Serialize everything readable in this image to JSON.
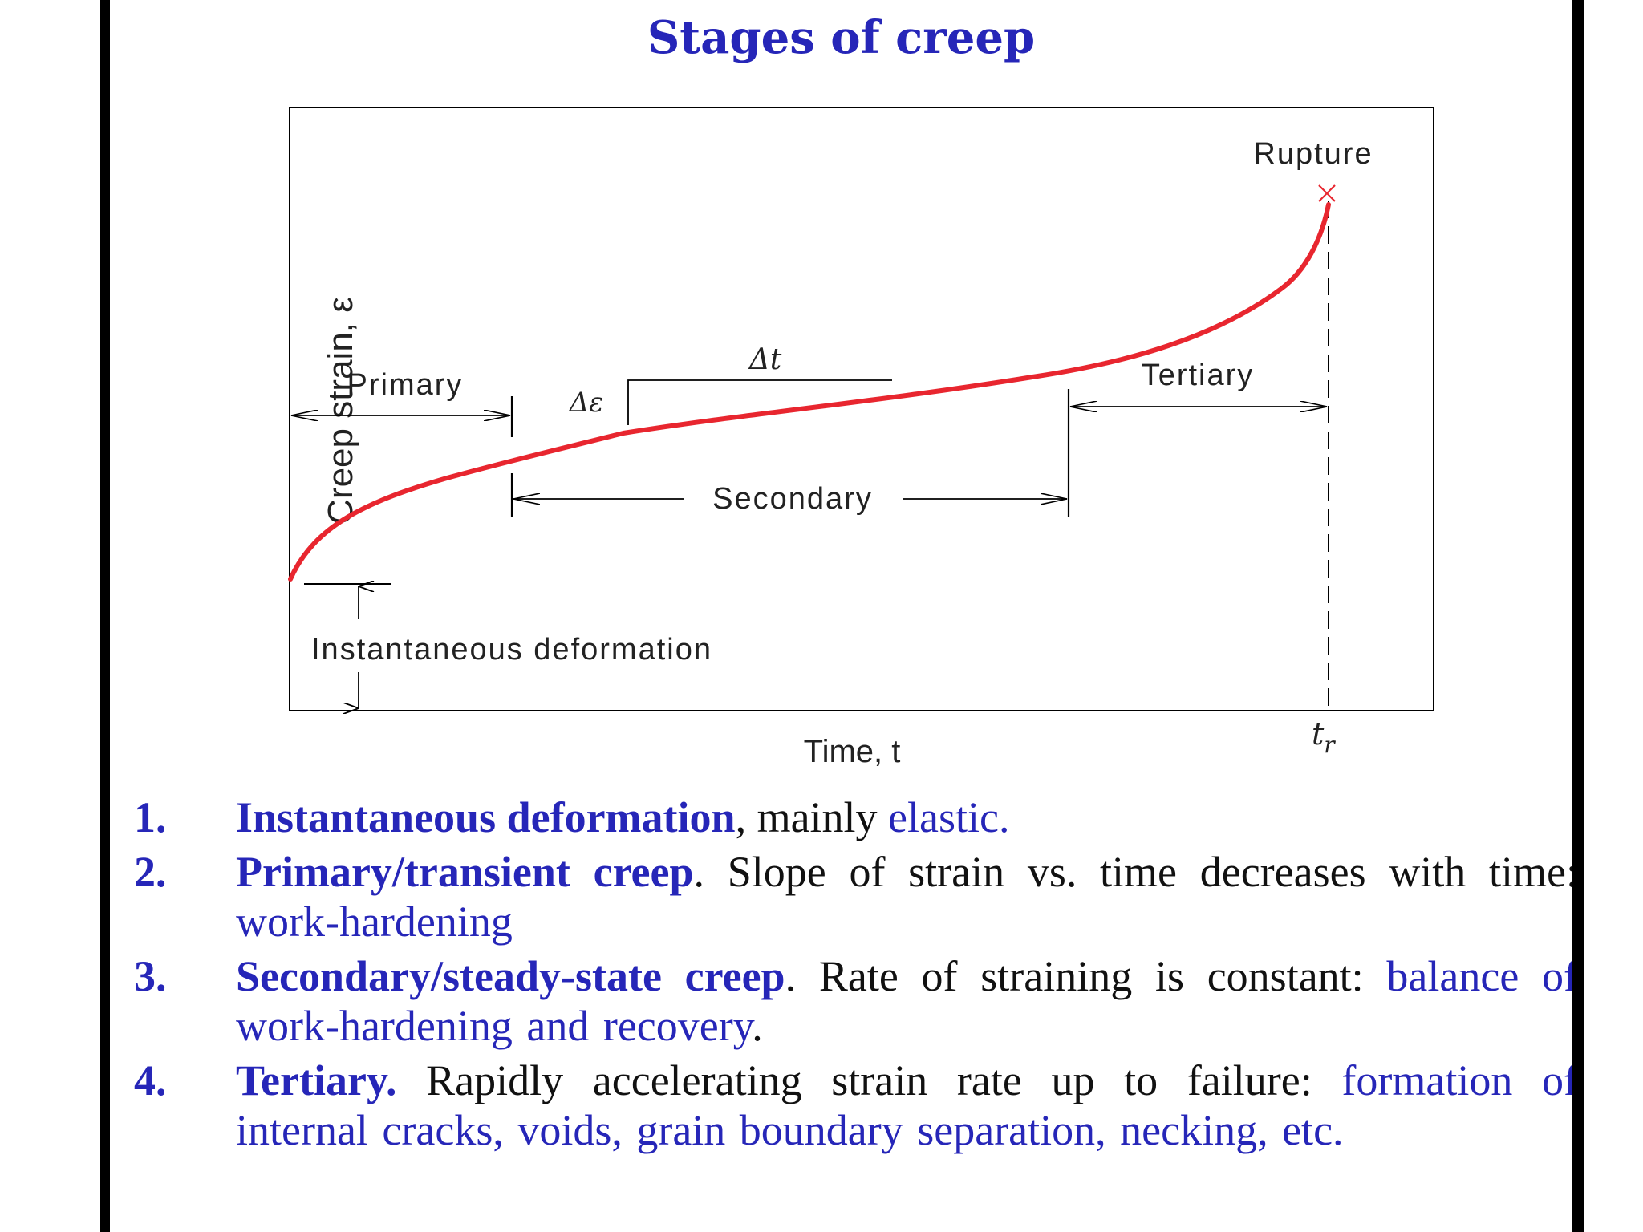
{
  "title": "Stages of creep",
  "diagram": {
    "ylabel": "Creep strain, ε",
    "xlabel": "Time, t",
    "rupture_label": "Rupture",
    "primary_label": "Primary",
    "secondary_label": "Secondary",
    "tertiary_label": "Tertiary",
    "delta_t_label": "Δt",
    "delta_e_label": "Δε",
    "instantaneous_label": "Instantaneous deformation",
    "tr_label": "t",
    "tr_sub": "r",
    "curve_color": "#e8262f",
    "rupture_marker": "x-mark"
  },
  "items": [
    {
      "num": "1.",
      "highlight": "Instantaneous deformation",
      "text": ", mainly ",
      "blue": "elastic."
    },
    {
      "num": "2.",
      "highlight": "Primary/transient creep",
      "text": ". Slope of strain vs. time decreases with time: ",
      "blue": "work-hardening"
    },
    {
      "num": "3.",
      "highlight": "Secondary/steady-state creep",
      "text": ". Rate of straining is constant: ",
      "blue": "balance of work-hardening and recovery",
      "tail": "."
    },
    {
      "num": "4.",
      "highlight": "Tertiary.",
      "text": " Rapidly accelerating strain rate up to failure: ",
      "blue": "formation of internal cracks, voids, grain boundary separation, necking, etc."
    }
  ]
}
